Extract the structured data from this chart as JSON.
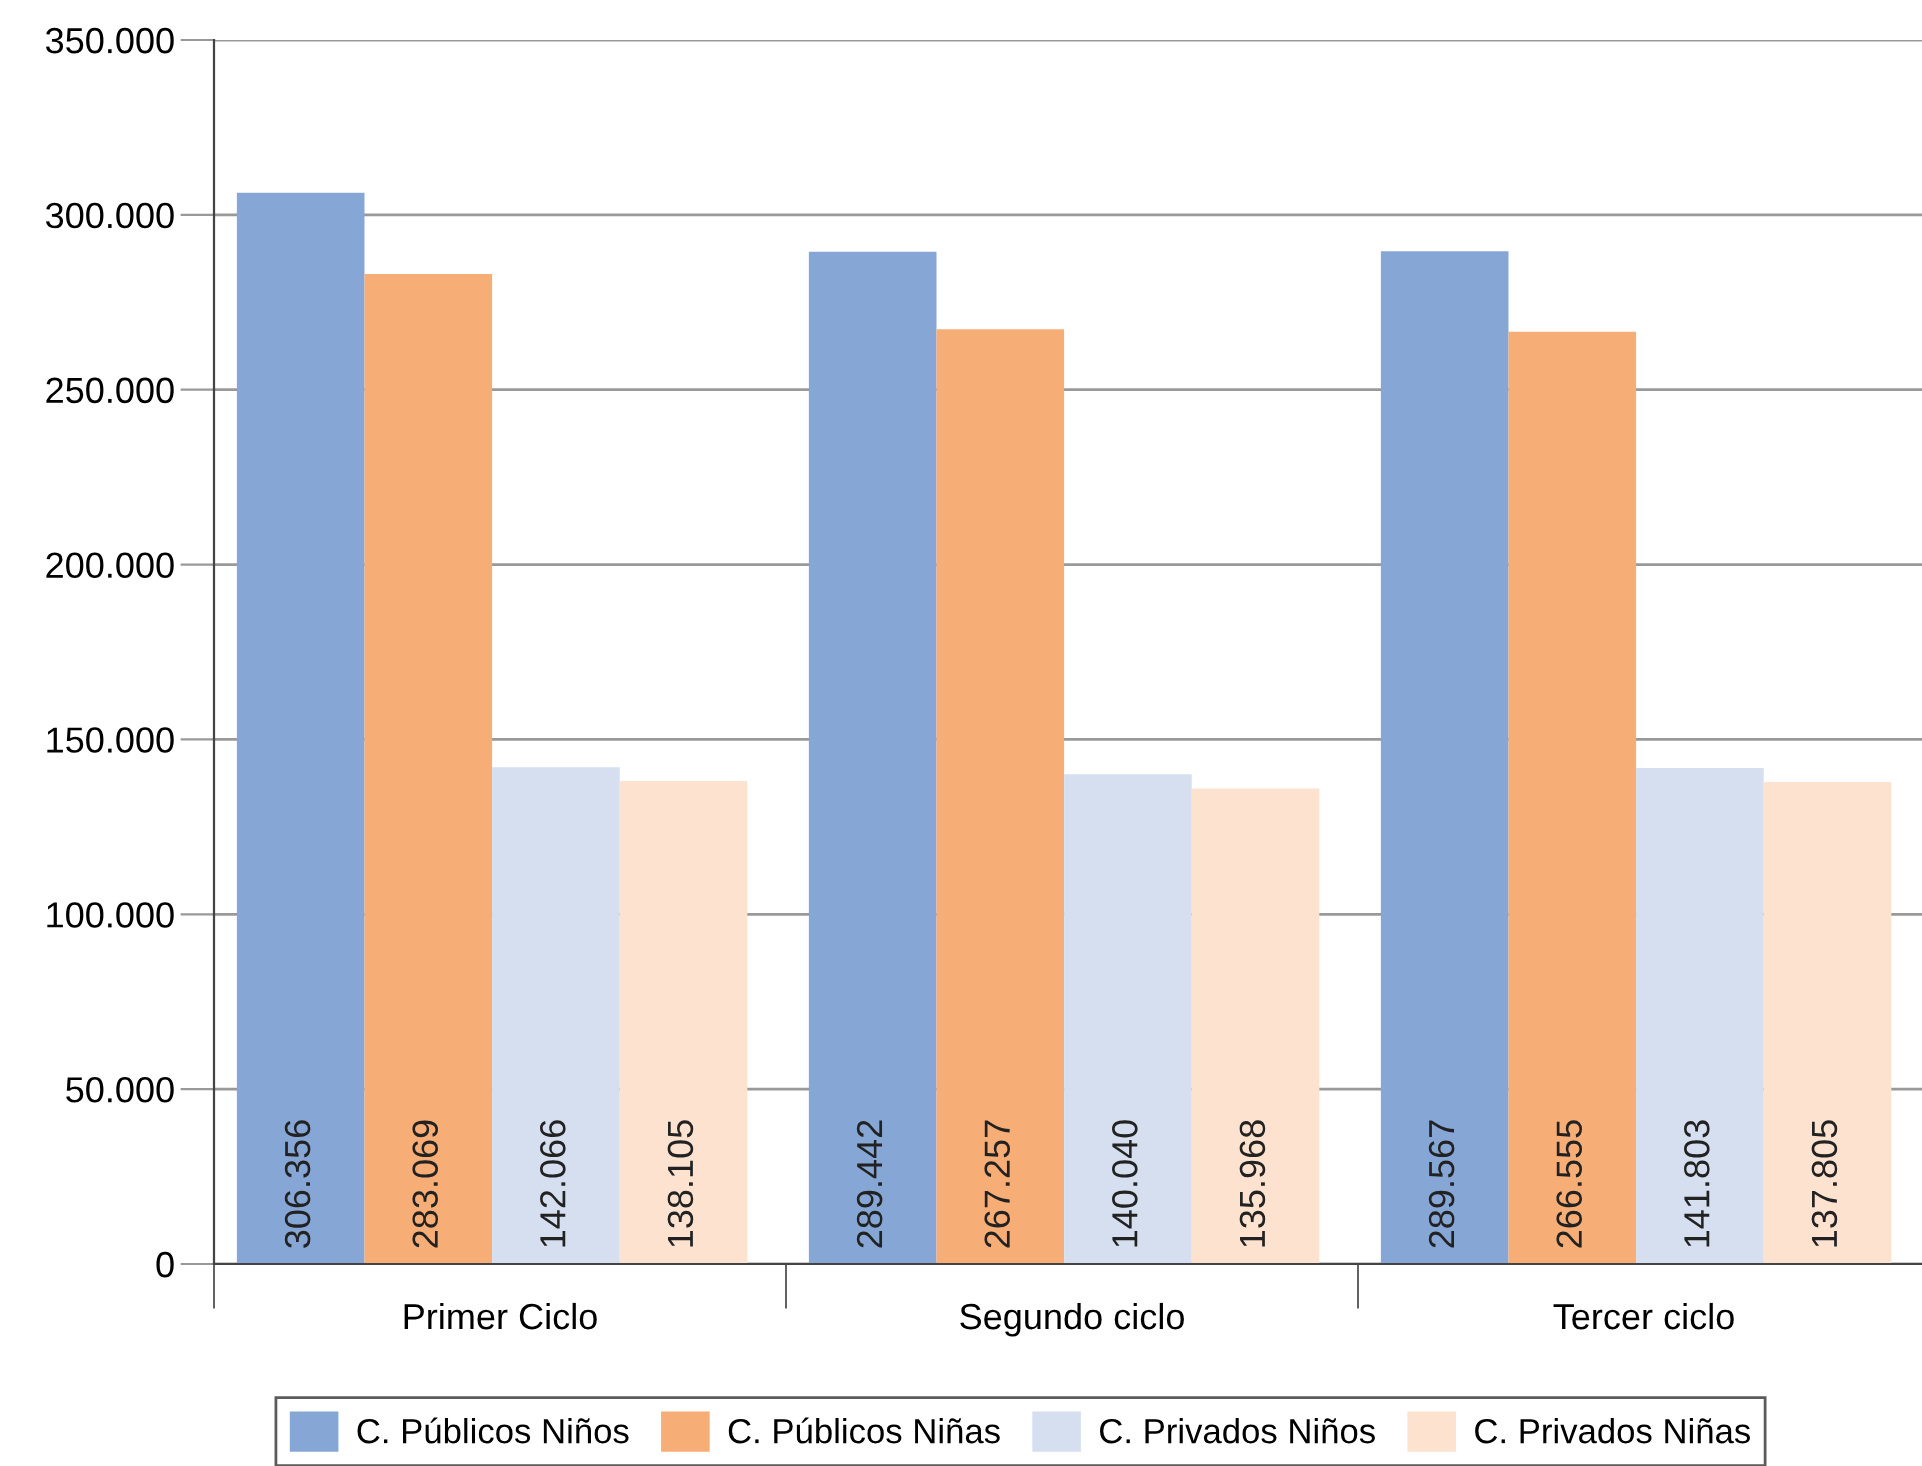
{
  "chart_data": {
    "type": "bar",
    "categories": [
      "Primer Ciclo",
      "Segundo ciclo",
      "Tercer ciclo"
    ],
    "series": [
      {
        "name": "C. Públicos Niños",
        "color": "#86a6d6",
        "values": [
          306356,
          289442,
          289567
        ],
        "value_labels": [
          "306.356",
          "289.442",
          "289.567"
        ]
      },
      {
        "name": "C. Públicos Niñas",
        "color": "#f7ae76",
        "values": [
          283069,
          267257,
          266555
        ],
        "value_labels": [
          "283.069",
          "267.257",
          "266.555"
        ]
      },
      {
        "name": "C. Privados Niños",
        "color": "#d6dff0",
        "values": [
          142066,
          140040,
          141803
        ],
        "value_labels": [
          "142.066",
          "140.040",
          "141.803"
        ]
      },
      {
        "name": "C. Privados Niñas",
        "color": "#fde2cf",
        "values": [
          138105,
          135968,
          137805
        ],
        "value_labels": [
          "138.105",
          "135.968",
          "137.805"
        ]
      }
    ],
    "ylim": [
      0,
      350000
    ],
    "yticks": [
      {
        "value": 0,
        "label": "0"
      },
      {
        "value": 50000,
        "label": "50.000"
      },
      {
        "value": 100000,
        "label": "100.000"
      },
      {
        "value": 150000,
        "label": "150.000"
      },
      {
        "value": 200000,
        "label": "200.000"
      },
      {
        "value": 250000,
        "label": "250.000"
      },
      {
        "value": 300000,
        "label": "300.000"
      },
      {
        "value": 350000,
        "label": "350.000"
      }
    ],
    "grid": "y",
    "legend": "bottom"
  }
}
